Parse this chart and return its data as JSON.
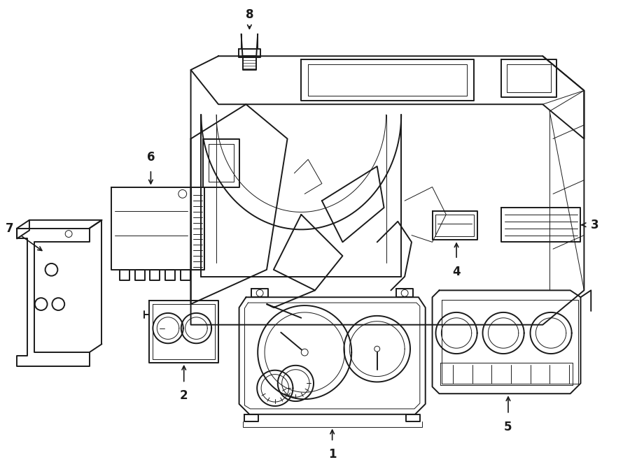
{
  "bg_color": "#ffffff",
  "line_color": "#1a1a1a",
  "lw_main": 1.4,
  "lw_thin": 0.7,
  "fig_w": 9.0,
  "fig_h": 6.61,
  "dpi": 100
}
